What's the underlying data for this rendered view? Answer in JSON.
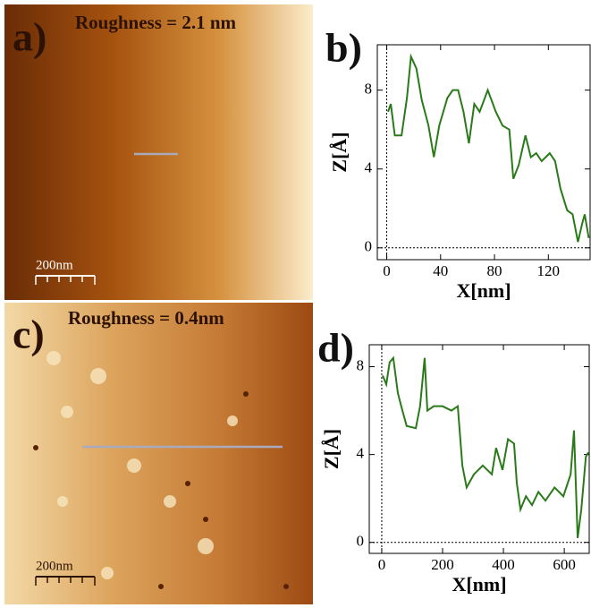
{
  "images": [
    {
      "label": "a)",
      "annotation": "Roughness = 2.1 nm",
      "scale_bar": "200nm"
    },
    {
      "label": "c)",
      "annotation": "Roughness = 0.4nm",
      "scale_bar": "200nm"
    }
  ],
  "chart_data": [
    {
      "type": "line",
      "panel_label": "b)",
      "x_label": "X[nm]",
      "y_label": "Z[Å]",
      "color": "#2a7a1a",
      "x": [
        1,
        3,
        6,
        11,
        15,
        18,
        22,
        26,
        31,
        35,
        39,
        45,
        49,
        53,
        57,
        61,
        65,
        69,
        75,
        81,
        86,
        91,
        94,
        98,
        103,
        107,
        111,
        115,
        121,
        125,
        129,
        134,
        138,
        142,
        145,
        147,
        150
      ],
      "values": [
        6.9,
        7.3,
        5.7,
        5.7,
        7.6,
        9.7,
        9.1,
        7.5,
        6.2,
        4.6,
        6.2,
        7.6,
        8.0,
        8.0,
        6.9,
        5.3,
        7.3,
        6.9,
        8.0,
        6.9,
        6.2,
        6.0,
        3.5,
        4.2,
        5.7,
        4.6,
        4.8,
        4.4,
        4.8,
        4.4,
        3.0,
        1.9,
        1.7,
        0.3,
        1.2,
        1.7,
        0.5
      ],
      "xlim": [
        -7,
        151
      ],
      "ylim": [
        -0.6,
        10.3
      ],
      "xticks": [
        0,
        40,
        80,
        120
      ],
      "yticks": [
        0,
        4,
        8
      ]
    },
    {
      "type": "line",
      "panel_label": "d)",
      "x_label": "X[nm]",
      "y_label": "Z[Å]",
      "color": "#2a7a1a",
      "x": [
        3,
        15,
        26,
        38,
        53,
        68,
        82,
        112,
        126,
        141,
        150,
        171,
        200,
        229,
        250,
        265,
        279,
        303,
        332,
        362,
        376,
        397,
        415,
        435,
        444,
        456,
        474,
        494,
        515,
        538,
        568,
        597,
        621,
        632,
        644,
        656,
        671,
        679
      ],
      "values": [
        7.6,
        7.2,
        8.2,
        8.4,
        6.8,
        6.0,
        5.3,
        5.2,
        6.2,
        8.4,
        6.0,
        6.2,
        6.2,
        6.0,
        6.2,
        3.5,
        2.5,
        3.1,
        3.5,
        3.1,
        4.3,
        3.3,
        4.7,
        4.5,
        2.7,
        1.5,
        2.1,
        1.7,
        2.3,
        1.9,
        2.5,
        2.1,
        3.1,
        5.1,
        0.2,
        1.5,
        3.9,
        4.1
      ],
      "xlim": [
        -41,
        682
      ],
      "ylim": [
        -0.5,
        9.0
      ],
      "xticks": [
        0,
        200,
        400,
        600
      ],
      "yticks": [
        0,
        4,
        8
      ]
    }
  ]
}
